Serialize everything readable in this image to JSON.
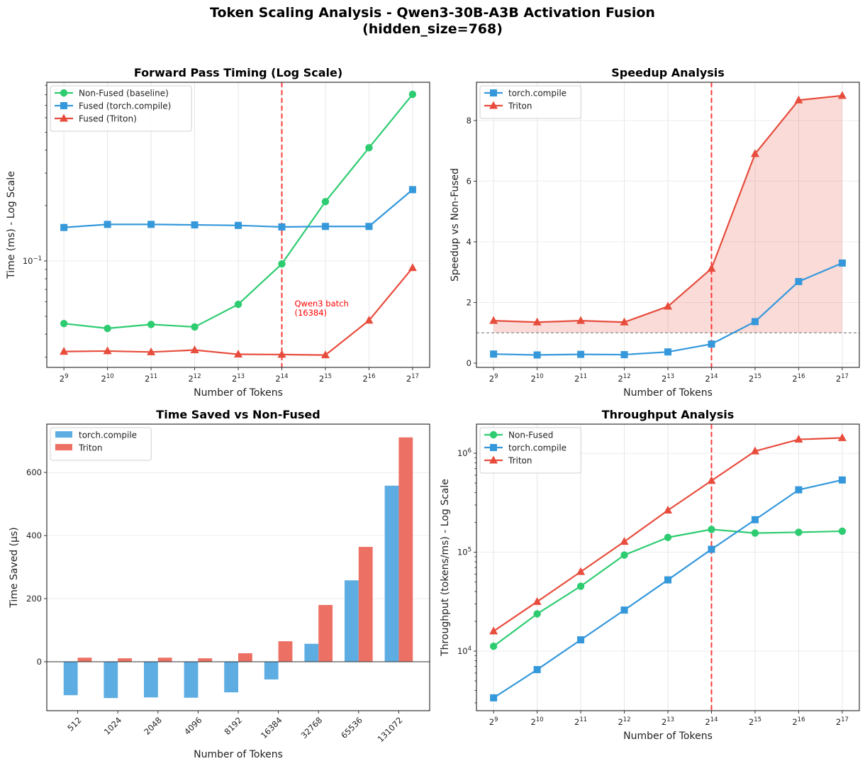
{
  "figure": {
    "title_line1": "Token Scaling Analysis - Qwen3-30B-A3B Activation Fusion",
    "title_line2": "(hidden_size=768)"
  },
  "colors": {
    "non_fused": "#2ecc71",
    "torch_compile": "#3498db",
    "triton": "#e74c3c",
    "reference_line": "#ff0000",
    "baseline_line": "#888888"
  },
  "chart_data": [
    {
      "type": "line",
      "title": "Forward Pass Timing (Log Scale)",
      "xlabel": "Number of Tokens",
      "ylabel": "Time (ms) - Log Scale",
      "xscale": "log2",
      "yscale": "log",
      "x": [
        512,
        1024,
        2048,
        4096,
        8192,
        16384,
        32768,
        65536,
        131072
      ],
      "xtick_labels": [
        "2^9",
        "2^10",
        "2^11",
        "2^12",
        "2^13",
        "2^14",
        "2^15",
        "2^16",
        "2^17"
      ],
      "xlim": [
        390,
        172000
      ],
      "ylim": [
        0.0264,
        0.935
      ],
      "yticks": [
        0.1
      ],
      "ytick_labels": [
        "10^-1"
      ],
      "grid": true,
      "legend": "top-left",
      "series": [
        {
          "name": "Non-Fused (baseline)",
          "color": "#2ecc71",
          "marker": "circle",
          "values": [
            0.0457,
            0.043,
            0.0452,
            0.0438,
            0.0581,
            0.0964,
            0.21,
            0.412,
            0.804
          ]
        },
        {
          "name": "Fused (torch.compile)",
          "color": "#3498db",
          "marker": "square",
          "values": [
            0.152,
            0.158,
            0.158,
            0.157,
            0.156,
            0.153,
            0.154,
            0.154,
            0.244
          ]
        },
        {
          "name": "Fused (Triton)",
          "color": "#e74c3c",
          "marker": "triangle",
          "values": [
            0.0322,
            0.0324,
            0.032,
            0.0328,
            0.0311,
            0.031,
            0.0308,
            0.0475,
            0.0917
          ]
        }
      ],
      "vline": {
        "x": 16384,
        "color": "#ff0000"
      },
      "annotation": {
        "line1": "Qwen3 batch",
        "line2": "(16384)",
        "color": "#ff0000"
      }
    },
    {
      "type": "line",
      "title": "Speedup Analysis",
      "xlabel": "Number of Tokens",
      "ylabel": "Speedup vs Non-Fused",
      "xscale": "log2",
      "yscale": "linear",
      "x": [
        512,
        1024,
        2048,
        4096,
        8192,
        16384,
        32768,
        65536,
        131072
      ],
      "xtick_labels": [
        "2^9",
        "2^10",
        "2^11",
        "2^12",
        "2^13",
        "2^14",
        "2^15",
        "2^16",
        "2^17"
      ],
      "xlim": [
        390,
        172000
      ],
      "ylim": [
        -0.14,
        9.26
      ],
      "yticks": [
        0,
        2,
        4,
        6,
        8
      ],
      "ytick_labels": [
        "0",
        "2",
        "4",
        "6",
        "8"
      ],
      "grid": true,
      "legend": "top-left",
      "series": [
        {
          "name": "torch.compile",
          "color": "#3498db",
          "marker": "square",
          "values": [
            0.3,
            0.27,
            0.29,
            0.28,
            0.37,
            0.63,
            1.37,
            2.69,
            3.3
          ]
        },
        {
          "name": "Triton",
          "color": "#e74c3c",
          "marker": "triangle",
          "values": [
            1.4,
            1.35,
            1.4,
            1.35,
            1.87,
            3.12,
            6.9,
            8.67,
            8.82
          ]
        }
      ],
      "hline": {
        "y": 1.0,
        "color": "#888888"
      },
      "fill_between": {
        "series": "Triton",
        "baseline": 1.0,
        "color": "#e74c3c"
      },
      "vline": {
        "x": 16384,
        "color": "#ff0000"
      }
    },
    {
      "type": "bar",
      "title": "Time Saved vs Non-Fused",
      "xlabel": "Number of Tokens",
      "ylabel": "Time Saved (µs)",
      "categories": [
        "512",
        "1024",
        "2048",
        "4096",
        "8192",
        "16384",
        "32768",
        "65536",
        "131072"
      ],
      "ylim": [
        -155,
        753
      ],
      "yticks": [
        0,
        200,
        400,
        600
      ],
      "ytick_labels": [
        "0",
        "200",
        "400",
        "600"
      ],
      "grid": true,
      "legend": "top-left",
      "series": [
        {
          "name": "torch.compile",
          "color": "#5dade2",
          "values": [
            -106,
            -115,
            -113,
            -114,
            -97,
            -56,
            57,
            258,
            558
          ]
        },
        {
          "name": "Triton",
          "color": "#ec7063",
          "values": [
            13,
            11,
            13,
            11,
            27,
            65,
            180,
            364,
            711
          ]
        }
      ]
    },
    {
      "type": "line",
      "title": "Throughput Analysis",
      "xlabel": "Number of Tokens",
      "ylabel": "Throughput (tokens/ms) - Log Scale",
      "xscale": "log2",
      "yscale": "log",
      "x": [
        512,
        1024,
        2048,
        4096,
        8192,
        16384,
        32768,
        65536,
        131072
      ],
      "xtick_labels": [
        "2^9",
        "2^10",
        "2^11",
        "2^12",
        "2^13",
        "2^14",
        "2^15",
        "2^16",
        "2^17"
      ],
      "xlim": [
        390,
        172000
      ],
      "ylim": [
        2500,
        1970000
      ],
      "yticks": [
        10000,
        100000,
        1000000
      ],
      "ytick_labels": [
        "10^4",
        "10^5",
        "10^6"
      ],
      "grid": true,
      "legend": "top-left",
      "series": [
        {
          "name": "Non-Fused",
          "color": "#2ecc71",
          "marker": "circle",
          "values": [
            11200,
            23800,
            45300,
            93600,
            141000,
            170000,
            156000,
            159000,
            163000
          ]
        },
        {
          "name": "torch.compile",
          "color": "#3498db",
          "marker": "square",
          "values": [
            3370,
            6500,
            13000,
            26000,
            52500,
            107000,
            213000,
            427000,
            537000
          ]
        },
        {
          "name": "Triton",
          "color": "#e74c3c",
          "marker": "triangle",
          "values": [
            15900,
            31600,
            63400,
            128000,
            265000,
            528000,
            1050000,
            1380000,
            1430000
          ]
        }
      ],
      "vline": {
        "x": 16384,
        "color": "#ff0000"
      }
    }
  ]
}
